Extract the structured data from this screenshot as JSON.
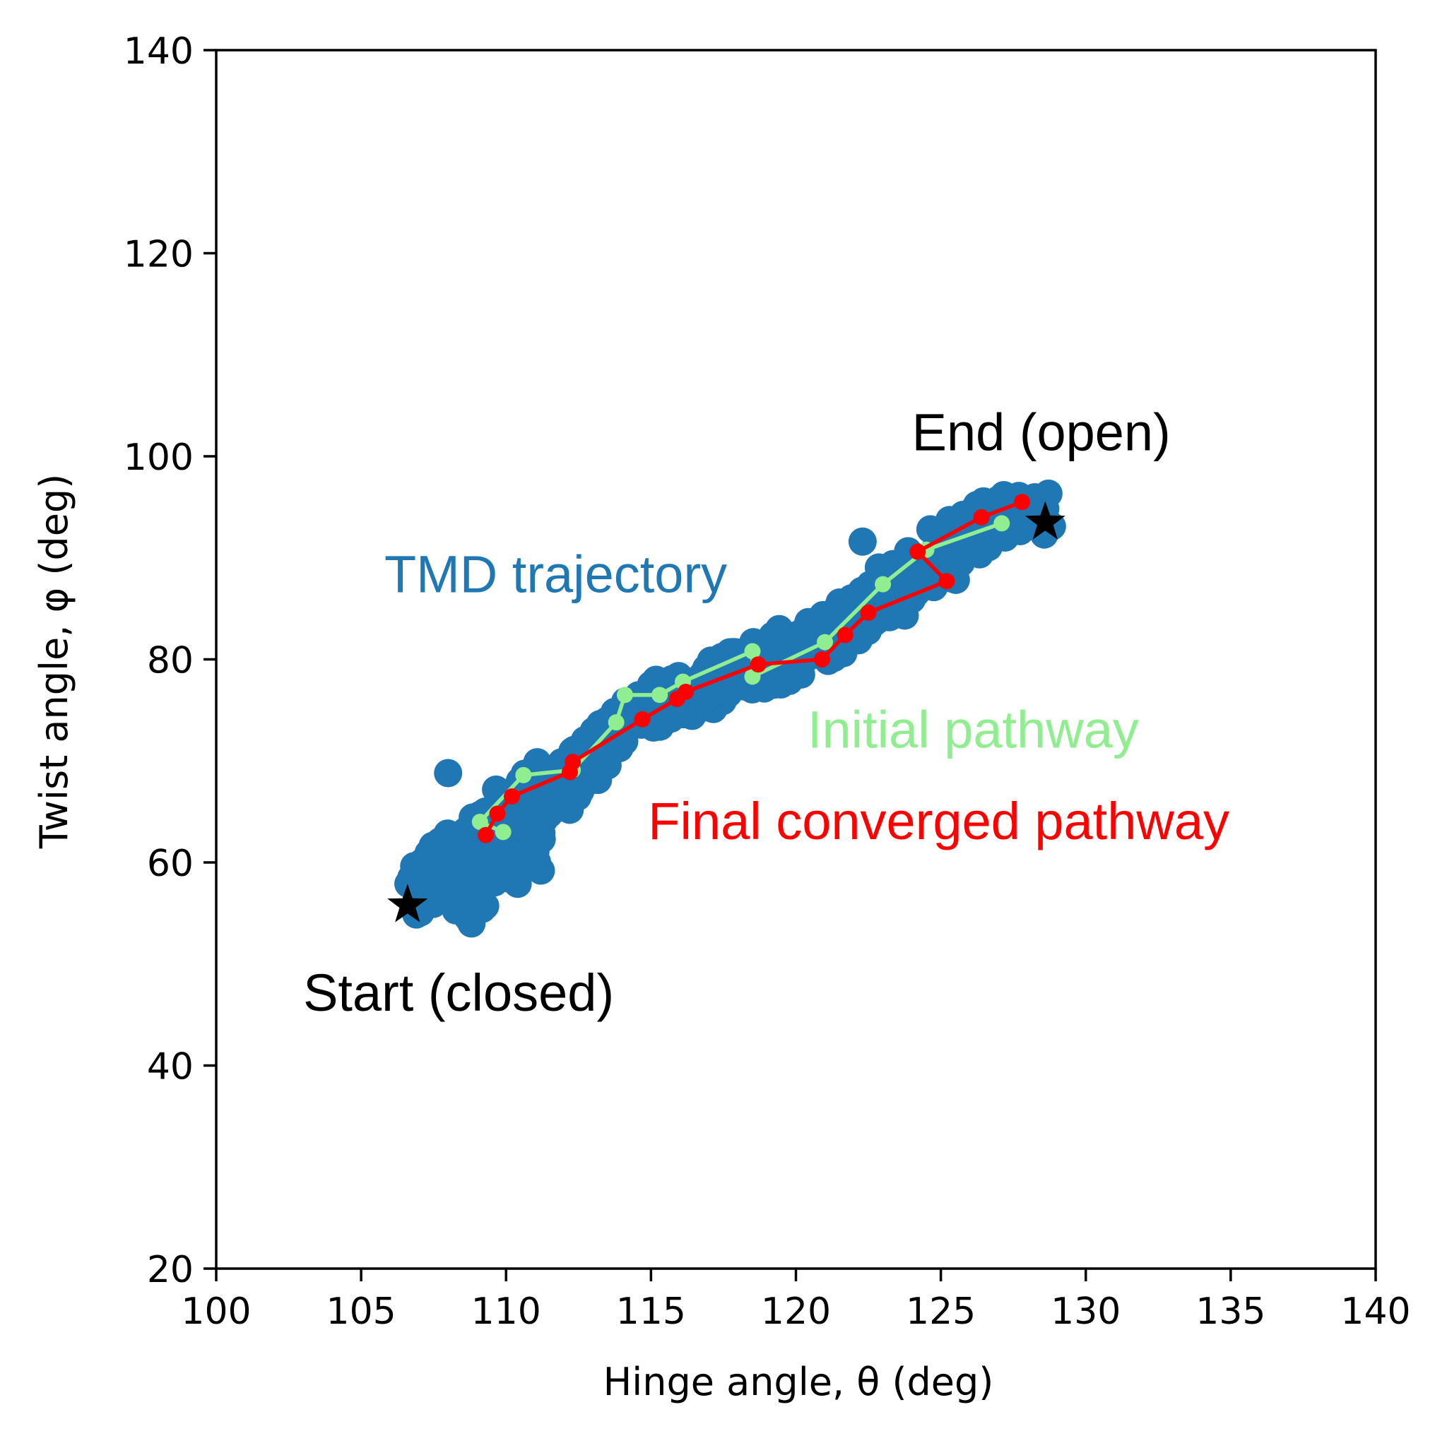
{
  "chart_data": {
    "type": "scatter",
    "xlabel": "Hinge angle, θ (deg)",
    "ylabel": "Twist angle, φ (deg)",
    "xlim": [
      100,
      140
    ],
    "ylim": [
      20,
      140
    ],
    "xticks": [
      100,
      105,
      110,
      115,
      120,
      125,
      130,
      135,
      140
    ],
    "yticks": [
      20,
      40,
      60,
      80,
      100,
      120,
      140
    ],
    "grid": false,
    "colors": {
      "trajectory": "#1f77b4",
      "initial": "#90ee90",
      "final": "#ff0000",
      "markers": "#000000"
    },
    "annotations": [
      {
        "key": "tmd",
        "text": "TMD trajectory",
        "x": 105.8,
        "y": 86.6,
        "color": "#1f77b4"
      },
      {
        "key": "initial",
        "text": "Initial pathway",
        "x": 120.4,
        "y": 71.3,
        "color": "#90ee90"
      },
      {
        "key": "final",
        "text": "Final converged pathway",
        "x": 114.9,
        "y": 62.3,
        "color": "#ff0000"
      },
      {
        "key": "start",
        "text": "Start (closed)",
        "x": 103.0,
        "y": 45.4,
        "color": "#000000"
      },
      {
        "key": "end",
        "text": "End (open)",
        "x": 124.0,
        "y": 100.6,
        "color": "#000000"
      }
    ],
    "start_marker": {
      "x": 106.6,
      "y": 55.8
    },
    "end_marker": {
      "x": 128.6,
      "y": 93.5
    },
    "series": [
      {
        "key": "trajectory",
        "kind": "scatter",
        "centerline": [
          [
            107.6,
            56.5
          ],
          [
            108.5,
            58.5
          ],
          [
            109.5,
            61.5
          ],
          [
            110.5,
            64.5
          ],
          [
            111.5,
            67.0
          ],
          [
            113.0,
            71.0
          ],
          [
            114.5,
            74.5
          ],
          [
            116.0,
            76.5
          ],
          [
            117.5,
            78.0
          ],
          [
            119.0,
            79.5
          ],
          [
            120.5,
            81.5
          ],
          [
            122.0,
            84.0
          ],
          [
            123.5,
            87.0
          ],
          [
            125.0,
            90.0
          ],
          [
            126.0,
            92.5
          ],
          [
            127.0,
            94.0
          ],
          [
            128.5,
            94.5
          ]
        ],
        "extra_points": [
          [
            108.0,
            68.8
          ],
          [
            122.3,
            91.6
          ],
          [
            110.4,
            57.9
          ],
          [
            111.2,
            59.2
          ],
          [
            119.0,
            77.4
          ],
          [
            121.5,
            80.8
          ],
          [
            127.5,
            95.9
          ],
          [
            108.7,
            54.8
          ]
        ]
      },
      {
        "key": "initial",
        "kind": "line",
        "x": [
          109.9,
          109.1,
          110.6,
          112.3,
          113.8,
          114.1,
          115.3,
          116.1,
          118.5,
          118.5,
          121.0,
          123.0,
          124.5,
          127.1
        ],
        "y": [
          63.0,
          64.0,
          68.6,
          69.1,
          73.8,
          76.5,
          76.5,
          77.8,
          80.8,
          78.3,
          81.7,
          87.4,
          90.8,
          93.4
        ]
      },
      {
        "key": "final",
        "kind": "line",
        "x": [
          109.3,
          109.7,
          110.2,
          112.2,
          112.3,
          114.7,
          115.9,
          116.2,
          118.7,
          120.9,
          121.7,
          122.5,
          125.2,
          124.2,
          126.4,
          127.8
        ],
        "y": [
          62.7,
          64.8,
          66.5,
          68.9,
          69.9,
          74.1,
          76.1,
          76.8,
          79.5,
          80.0,
          82.4,
          84.6,
          87.7,
          90.6,
          94.0,
          95.5
        ]
      }
    ]
  }
}
